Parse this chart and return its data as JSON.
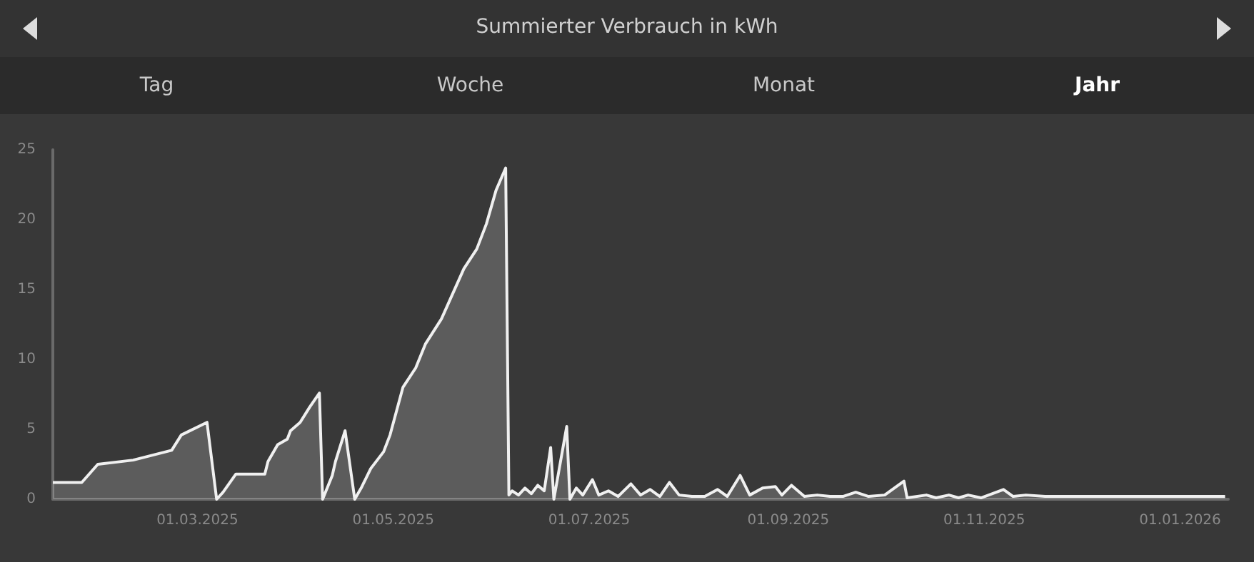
{
  "chart_data": {
    "type": "area",
    "title": "Summierter Verbrauch in kWh",
    "annotations": [
      "Tag",
      "Woche",
      "Monat",
      "Jahr"
    ],
    "x": [
      "2025-01-15",
      "2025-01-24",
      "2025-01-29",
      "2025-02-09",
      "2025-02-21",
      "2025-02-24",
      "2025-03-04",
      "2025-03-07",
      "2025-03-09",
      "2025-03-13",
      "2025-03-22",
      "2025-03-23",
      "2025-03-26",
      "2025-03-29",
      "2025-03-30",
      "2025-04-02",
      "2025-04-05",
      "2025-04-08",
      "2025-04-09",
      "2025-04-12",
      "2025-04-13",
      "2025-04-16",
      "2025-04-19",
      "2025-04-21",
      "2025-04-24",
      "2025-04-28",
      "2025-04-30",
      "2025-05-02",
      "2025-05-04",
      "2025-05-08",
      "2025-05-11",
      "2025-05-16",
      "2025-05-23",
      "2025-05-27",
      "2025-05-30",
      "2025-06-02",
      "2025-06-05",
      "2025-06-06",
      "2025-06-07",
      "2025-06-09",
      "2025-06-11",
      "2025-06-13",
      "2025-06-15",
      "2025-06-17",
      "2025-06-19",
      "2025-06-20",
      "2025-06-24",
      "2025-06-25",
      "2025-06-27",
      "2025-06-29",
      "2025-07-02",
      "2025-07-04",
      "2025-07-07",
      "2025-07-10",
      "2025-07-14",
      "2025-07-17",
      "2025-07-20",
      "2025-07-23",
      "2025-07-26",
      "2025-07-29",
      "2025-08-02",
      "2025-08-06",
      "2025-08-10",
      "2025-08-13",
      "2025-08-17",
      "2025-08-20",
      "2025-08-24",
      "2025-08-28",
      "2025-08-30",
      "2025-09-02",
      "2025-09-06",
      "2025-09-10",
      "2025-09-14",
      "2025-09-18",
      "2025-09-22",
      "2025-09-26",
      "2025-10-01",
      "2025-10-07",
      "2025-10-08",
      "2025-10-14",
      "2025-10-17",
      "2025-10-21",
      "2025-10-24",
      "2025-10-27",
      "2025-10-31",
      "2025-11-07",
      "2025-11-10",
      "2025-11-14",
      "2025-11-20",
      "2025-12-01",
      "2025-12-09",
      "2025-12-15",
      "2025-12-25",
      "2026-01-05",
      "2026-01-15"
    ],
    "series": [
      {
        "color": "#f0f0f0",
        "values": [
          1.2,
          1.2,
          2.5,
          2.8,
          3.5,
          4.6,
          5.5,
          0,
          0.5,
          1.8,
          1.8,
          2.7,
          3.9,
          4.3,
          4.9,
          5.5,
          6.6,
          7.6,
          0,
          1.7,
          2.7,
          4.9,
          0,
          0.8,
          2.2,
          3.4,
          4.6,
          6.3,
          8.0,
          9.4,
          11.1,
          12.9,
          16.5,
          17.9,
          19.7,
          22.1,
          23.7,
          0.3,
          0.6,
          0.3,
          0.8,
          0.4,
          1.0,
          0.6,
          3.7,
          0,
          5.2,
          0,
          0.8,
          0.3,
          1.4,
          0.3,
          0.6,
          0.2,
          1.1,
          0.3,
          0.7,
          0.2,
          1.2,
          0.3,
          0.2,
          0.2,
          0.7,
          0.2,
          1.7,
          0.3,
          0.8,
          0.9,
          0.3,
          1.0,
          0.2,
          0.3,
          0.2,
          0.2,
          0.5,
          0.2,
          0.3,
          1.3,
          0.1,
          0.3,
          0.1,
          0.3,
          0.1,
          0.3,
          0.1,
          0.7,
          0.2,
          0.3,
          0.2,
          0.2,
          0.2,
          0.2,
          0.2,
          0.2,
          0.2
        ]
      }
    ],
    "xlim": [
      "2025-01-15",
      "2026-01-16"
    ],
    "xticks": [
      {
        "value": "2025-03-01",
        "label": "01.03.2025"
      },
      {
        "value": "2025-05-01",
        "label": "01.05.2025"
      },
      {
        "value": "2025-07-01",
        "label": "01.07.2025"
      },
      {
        "value": "2025-09-01",
        "label": "01.09.2025"
      },
      {
        "value": "2025-11-01",
        "label": "01.11.2025"
      },
      {
        "value": "2026-01-01",
        "label": "01.01.2026"
      }
    ],
    "ylim": [
      0,
      25
    ],
    "yticks": [
      0,
      5,
      10,
      15,
      20,
      25
    ],
    "grid": false,
    "marker": "none",
    "line_style": "solid"
  }
}
